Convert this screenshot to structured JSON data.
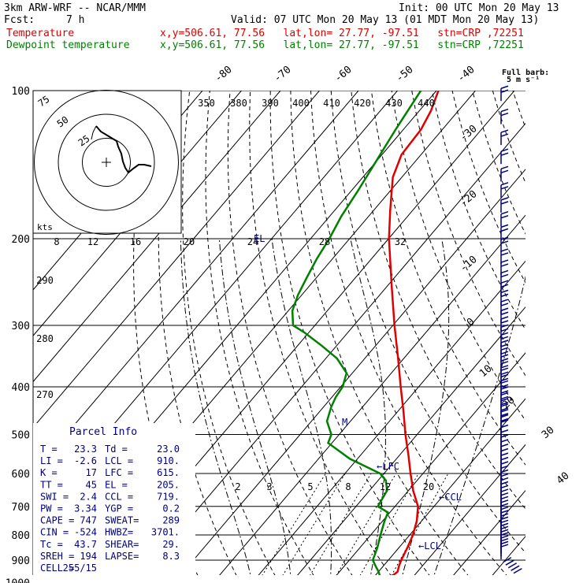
{
  "header": {
    "model": "3km ARW-WRF -- NCAR/MMM",
    "init": "Init: 00 UTC Mon 20 May 13",
    "fcst_label": "Fcst:",
    "fcst_value": "7 h",
    "valid": "Valid: 07 UTC Mon 20 May 13 (01 MDT Mon 20 May 13)"
  },
  "legend": [
    {
      "name": "Temperature",
      "loc": "x,y=506.61, 77.56   lat,lon= 27.77, -97.51   stn=CRP ,72251",
      "color": "#e00000"
    },
    {
      "name": "Dewpoint temperature",
      "loc": "x,y=506.61, 77.56   lat,lon= 27.77, -97.51   stn=CRP ,72251",
      "color": "#008000"
    }
  ],
  "barb_note": {
    "line1": "Full barb:",
    "line2": "5 m s⁻¹"
  },
  "parcel_info": {
    "title": "Parcel Info",
    "rows": [
      [
        "T  =",
        "23.3",
        "Td =",
        "23.0"
      ],
      [
        "LI =",
        "-2.6",
        "LCL =",
        "910."
      ],
      [
        "K  =",
        "17",
        "LFC =",
        "615."
      ],
      [
        "TT =",
        "45",
        "EL  =",
        "205."
      ],
      [
        "SWI =",
        "2.4",
        "CCL =",
        "719."
      ],
      [
        "PW =",
        "3.34",
        "YGP =",
        "0.2"
      ],
      [
        "CAPE =",
        "747",
        "SWEAT=",
        "289"
      ],
      [
        "CIN =",
        "-524",
        "HWBZ=",
        "3701."
      ],
      [
        "Tc =",
        "43.7",
        "SHEAR=",
        "29."
      ],
      [
        "SREH =",
        "194",
        "LAPSE=",
        "8.3"
      ],
      [
        "CELL =",
        "255/15",
        "",
        ""
      ]
    ]
  },
  "level_markers": [
    "EL",
    "M",
    "LFC",
    "CCL",
    "LCL"
  ],
  "hodograph": {
    "units": "kts",
    "ring_labels": [
      "75",
      "50",
      "25"
    ]
  },
  "colors": {
    "temperature": "#e00000",
    "dewpoint": "#008000",
    "info": "#000080",
    "grid": "#000000"
  },
  "chart_data": {
    "type": "line",
    "diagram": "skew-T log-p",
    "pressure_levels": [
      100,
      200,
      300,
      400,
      500,
      600,
      700,
      800,
      900,
      1000
    ],
    "isotherm_labels": [
      -80,
      -70,
      -60,
      -50,
      -40,
      -30,
      -20,
      -10,
      0,
      10,
      20,
      30,
      40
    ],
    "theta_labels": [
      350,
      380,
      390,
      400,
      410,
      420,
      430,
      440,
      290,
      280,
      270
    ],
    "mixing_ratio_labels": [
      2,
      3,
      5,
      8,
      12,
      20
    ],
    "hodo_speed_labels": [
      8,
      12,
      16,
      20,
      24,
      28,
      32
    ],
    "series": [
      {
        "name": "Temperature",
        "points": [
          [
            1000,
            23.3
          ],
          [
            980,
            24.2
          ],
          [
            950,
            24.9
          ],
          [
            925,
            24.0
          ],
          [
            900,
            23.3
          ],
          [
            850,
            22.2
          ],
          [
            800,
            20.8
          ],
          [
            750,
            18.8
          ],
          [
            700,
            15.9
          ],
          [
            650,
            11.2
          ],
          [
            600,
            6.8
          ],
          [
            550,
            2.2
          ],
          [
            500,
            -3.0
          ],
          [
            450,
            -8.4
          ],
          [
            400,
            -14.6
          ],
          [
            350,
            -21.5
          ],
          [
            300,
            -29.6
          ],
          [
            250,
            -38.8
          ],
          [
            200,
            -49.9
          ],
          [
            175,
            -55.8
          ],
          [
            150,
            -62.3
          ],
          [
            135,
            -65.0
          ],
          [
            120,
            -65.5
          ],
          [
            110,
            -67.0
          ],
          [
            100,
            -69.5
          ]
        ]
      },
      {
        "name": "Dewpoint temperature",
        "points": [
          [
            1000,
            23.0
          ],
          [
            980,
            22.0
          ],
          [
            950,
            20.0
          ],
          [
            925,
            18.0
          ],
          [
            900,
            16.0
          ],
          [
            850,
            14.5
          ],
          [
            800,
            12.5
          ],
          [
            750,
            10.5
          ],
          [
            720,
            9.5
          ],
          [
            700,
            5.6
          ],
          [
            650,
            4.5
          ],
          [
            620,
            2.0
          ],
          [
            600,
            -1.0
          ],
          [
            560,
            -12.0
          ],
          [
            520,
            -21.0
          ],
          [
            500,
            -22.0
          ],
          [
            470,
            -26.0
          ],
          [
            440,
            -28.0
          ],
          [
            420,
            -29.0
          ],
          [
            400,
            -29.5
          ],
          [
            375,
            -31.5
          ],
          [
            350,
            -37.2
          ],
          [
            330,
            -43.8
          ],
          [
            310,
            -51.2
          ],
          [
            300,
            -55.6
          ],
          [
            280,
            -59.0
          ],
          [
            260,
            -61.0
          ],
          [
            240,
            -62.5
          ],
          [
            220,
            -64.0
          ],
          [
            200,
            -65.2
          ],
          [
            180,
            -67.0
          ],
          [
            160,
            -68.3
          ],
          [
            140,
            -70.0
          ],
          [
            120,
            -72.0
          ],
          [
            100,
            -74.0
          ]
        ]
      }
    ]
  }
}
